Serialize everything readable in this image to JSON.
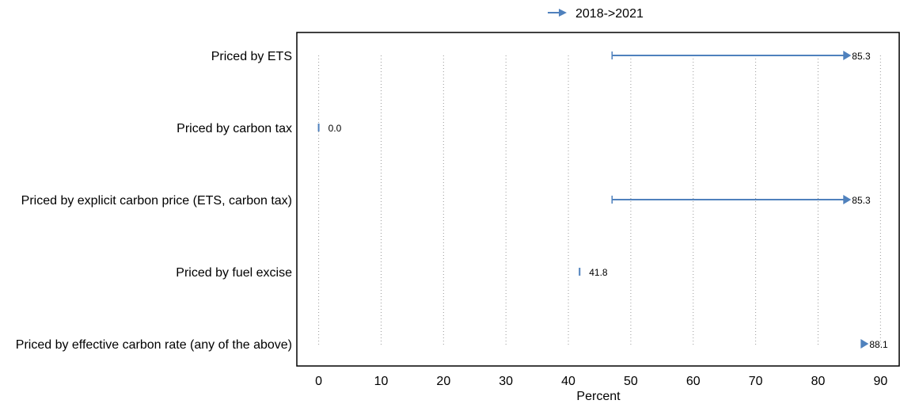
{
  "chart_data": {
    "type": "range-arrow",
    "legend": {
      "label": "2018->2021",
      "placement": "top-center"
    },
    "xlabel": "Percent",
    "xlim": [
      -3.5,
      93
    ],
    "xticks": [
      0,
      10,
      20,
      30,
      40,
      50,
      60,
      70,
      80,
      90
    ],
    "grid": "vertical-dotted",
    "categories": [
      "Priced by ETS",
      "Priced by carbon tax",
      "Priced by explicit carbon price (ETS, carbon tax)",
      "Priced by fuel excise",
      "Priced by effective carbon rate (any of the above)"
    ],
    "series": [
      {
        "start": [
          47.0,
          0.0,
          47.0,
          41.8,
          87.0
        ],
        "end": [
          85.3,
          0.0,
          85.3,
          41.8,
          88.1
        ],
        "labels": [
          "85.3",
          "0.0",
          "85.3",
          "41.8",
          "88.1"
        ]
      }
    ],
    "colors": {
      "series": "#4f81bd",
      "grid": "#999999",
      "axis": "#000000"
    }
  }
}
